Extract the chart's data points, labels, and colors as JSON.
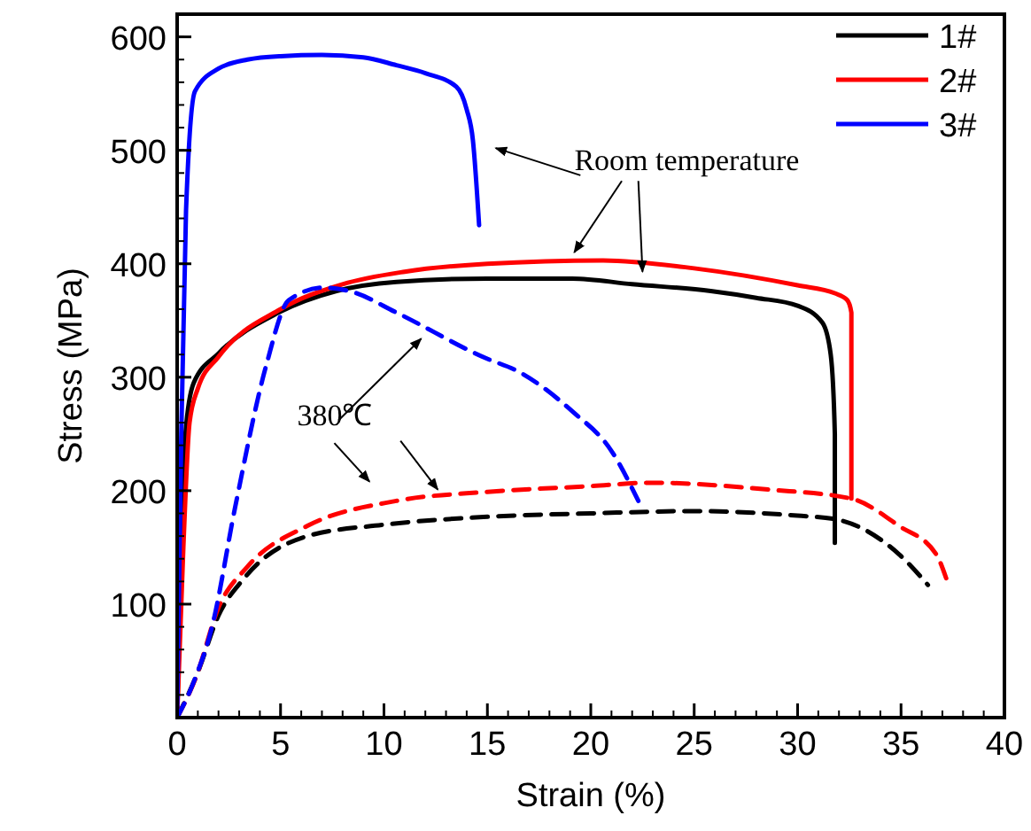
{
  "chart_data": {
    "type": "line",
    "xlabel": "Strain (%)",
    "ylabel": "Stress (MPa)",
    "xlim": [
      0,
      40
    ],
    "ylim": [
      0,
      620
    ],
    "xticks": [
      0,
      5,
      10,
      15,
      20,
      25,
      30,
      35,
      40
    ],
    "yticks": [
      100,
      200,
      300,
      400,
      500,
      600
    ],
    "grid": false,
    "legend": "top right",
    "annotations": [
      {
        "text": "Room temperature",
        "x": 22.5,
        "y": 393
      },
      {
        "text": "380℃",
        "x": 12.6,
        "y": 201
      }
    ],
    "series": [
      {
        "name": "1#",
        "color": "#000000",
        "line_style": "solid",
        "x": [
          0,
          0.2,
          0.4,
          0.8,
          2,
          4.9,
          7.7,
          10.6,
          15,
          19.1,
          22,
          25.8,
          28,
          30,
          31.2,
          31.6,
          31.8,
          31.8
        ],
        "values": [
          0,
          150,
          250,
          295,
          321,
          357,
          376,
          384,
          387,
          387,
          382,
          376,
          370,
          363,
          348,
          320,
          250,
          154
        ]
      },
      {
        "name": "2#",
        "color": "#ff0000",
        "line_style": "solid",
        "x": [
          0,
          0.3,
          0.6,
          1,
          2,
          5,
          8,
          11,
          15,
          20.6,
          25,
          30,
          31.8,
          32.4,
          32.6,
          32.6
        ],
        "values": [
          0,
          150,
          260,
          290,
          318,
          360,
          382,
          393,
          400,
          403,
          396,
          381,
          374,
          368,
          357,
          193
        ]
      },
      {
        "name": "3#",
        "color": "#0000ff",
        "line_style": "solid",
        "x": [
          0,
          0.2,
          0.43,
          0.86,
          2,
          3.4,
          5,
          7,
          9,
          10.6,
          12,
          13.5,
          14,
          14.3,
          14.6
        ],
        "values": [
          0,
          250,
          447,
          552,
          572,
          580,
          583,
          584,
          582,
          575,
          568,
          556,
          536,
          509,
          434
        ]
      },
      {
        "color": "#000000",
        "line_style": "dashed",
        "x": [
          0,
          1,
          2,
          3.2,
          6.3,
          10,
          15,
          20,
          25,
          30,
          31.8,
          34.9,
          36.3
        ],
        "values": [
          0,
          40,
          90,
          122,
          160,
          170,
          177,
          180,
          182,
          178,
          175,
          144,
          117
        ]
      },
      {
        "color": "#ff0000",
        "line_style": "dashed",
        "x": [
          0,
          0.9,
          2,
          3.4,
          6.3,
          10.6,
          15,
          20,
          22.9,
          28.6,
          32.6,
          34.9,
          36.7,
          37.2
        ],
        "values": [
          0,
          35,
          97,
          133,
          169,
          191,
          199,
          204,
          207,
          201,
          193,
          169,
          144,
          122
        ]
      },
      {
        "color": "#0000ff",
        "line_style": "dashed",
        "x": [
          0,
          0.86,
          1.7,
          2.8,
          4.3,
          5.4,
          7.1,
          8.5,
          10.6,
          14.9,
          16.5,
          19.1,
          21,
          22.3
        ],
        "values": [
          0,
          34,
          81,
          185,
          310,
          368,
          379,
          375,
          357,
          317,
          305,
          270,
          235,
          191
        ]
      }
    ]
  }
}
